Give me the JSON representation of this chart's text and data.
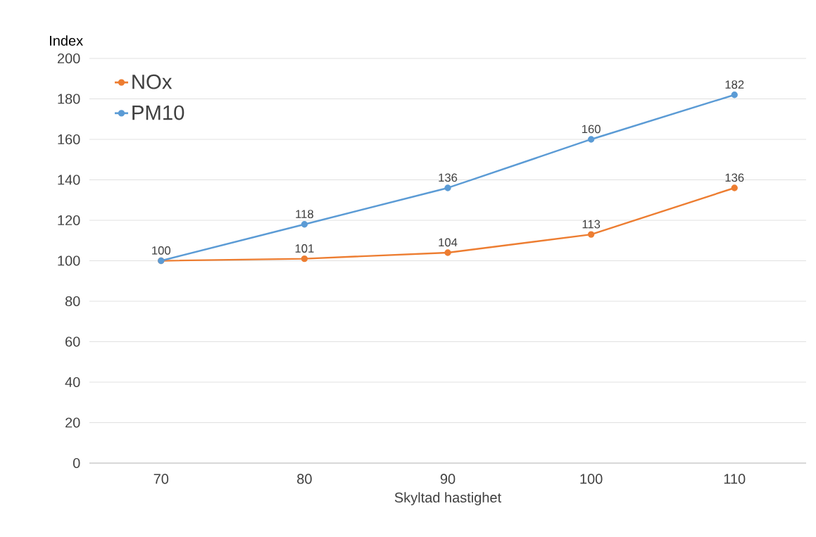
{
  "chart_data": {
    "type": "line",
    "xlabel": "Skyltad hastighet",
    "ylabel": "Index",
    "categories": [
      "70",
      "80",
      "90",
      "100",
      "110"
    ],
    "series": [
      {
        "name": "NOx",
        "color": "#ed7d31",
        "values": [
          100,
          101,
          104,
          113,
          136
        ],
        "value_labels": [
          null,
          "101",
          "104",
          "113",
          "136"
        ]
      },
      {
        "name": "PM10",
        "color": "#5b9bd5",
        "values": [
          100,
          118,
          136,
          160,
          182
        ],
        "value_labels": [
          "100",
          "118",
          "136",
          "160",
          "182"
        ]
      }
    ],
    "ylim": [
      0,
      200
    ],
    "yticks": [
      0,
      20,
      40,
      60,
      80,
      100,
      120,
      140,
      160,
      180,
      200
    ],
    "grid": "y",
    "legend": "top left",
    "marker": "circle",
    "line_style": "solid"
  }
}
